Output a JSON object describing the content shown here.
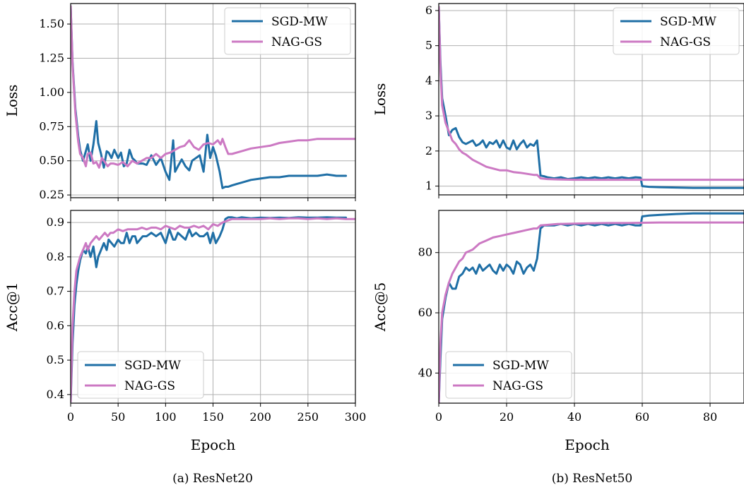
{
  "colors": {
    "sgd": "#1f6fa6",
    "nag": "#cc79c3",
    "grid": "#b0b0b0"
  },
  "panels": [
    {
      "id": "a-loss",
      "ylabel": "Loss",
      "xlim": [
        0,
        300
      ],
      "ylim": [
        0.23,
        1.65
      ],
      "yticks": [
        "0.25",
        "0.50",
        "0.75",
        "1.00",
        "1.25",
        "1.50"
      ],
      "xticks": [],
      "xlabel": "",
      "legend": {
        "position": "top-right",
        "entries": [
          "SGD-MW",
          "NAG-GS"
        ]
      }
    },
    {
      "id": "a-acc",
      "ylabel": "Acc@1",
      "xlim": [
        0,
        300
      ],
      "ylim": [
        0.375,
        0.935
      ],
      "yticks": [
        "0.4",
        "0.5",
        "0.6",
        "0.7",
        "0.8",
        "0.9"
      ],
      "xticks": [
        "0",
        "50",
        "100",
        "150",
        "200",
        "250",
        "300"
      ],
      "xlabel": "Epoch",
      "legend": {
        "position": "bottom-left",
        "entries": [
          "SGD-MW",
          "NAG-GS"
        ]
      }
    },
    {
      "id": "b-loss",
      "ylabel": "Loss",
      "xlim": [
        0,
        90
      ],
      "ylim": [
        0.75,
        6.2
      ],
      "yticks": [
        "1",
        "2",
        "3",
        "4",
        "5",
        "6"
      ],
      "xticks": [],
      "xlabel": "",
      "legend": {
        "position": "top-right",
        "entries": [
          "SGD-MW",
          "NAG-GS"
        ]
      }
    },
    {
      "id": "b-acc",
      "ylabel": "Acc@5",
      "xlim": [
        0,
        90
      ],
      "ylim": [
        30,
        94
      ],
      "yticks": [
        "40",
        "60",
        "80"
      ],
      "xticks": [
        "0",
        "20",
        "40",
        "60",
        "80"
      ],
      "xlabel": "Epoch",
      "legend": {
        "position": "bottom-left",
        "entries": [
          "SGD-MW",
          "NAG-GS"
        ]
      }
    }
  ],
  "captions": [
    "(a) ResNet20",
    "(b) ResNet50"
  ],
  "chart_data": [
    {
      "type": "line",
      "title": "",
      "xlabel": "",
      "ylabel": "Loss",
      "xlim": [
        0,
        300
      ],
      "ylim": [
        0.23,
        1.65
      ],
      "grid": true,
      "legend": "top-right",
      "series": [
        {
          "name": "SGD-MW",
          "x": [
            0,
            2,
            5,
            8,
            10,
            13,
            16,
            18,
            21,
            24,
            27,
            29,
            32,
            35,
            38,
            40,
            43,
            46,
            50,
            53,
            56,
            59,
            62,
            65,
            68,
            70,
            73,
            76,
            80,
            85,
            90,
            95,
            100,
            104,
            108,
            110,
            113,
            117,
            121,
            125,
            128,
            132,
            136,
            140,
            144,
            147,
            150,
            153,
            157,
            160,
            163,
            166,
            170,
            175,
            180,
            190,
            200,
            210,
            220,
            230,
            240,
            250,
            260,
            270,
            280,
            290
          ],
          "values": [
            1.63,
            1.22,
            0.88,
            0.68,
            0.58,
            0.5,
            0.57,
            0.62,
            0.5,
            0.62,
            0.79,
            0.63,
            0.55,
            0.45,
            0.57,
            0.56,
            0.52,
            0.58,
            0.52,
            0.56,
            0.46,
            0.48,
            0.58,
            0.52,
            0.5,
            0.48,
            0.48,
            0.48,
            0.47,
            0.54,
            0.47,
            0.52,
            0.42,
            0.36,
            0.65,
            0.42,
            0.46,
            0.51,
            0.46,
            0.43,
            0.5,
            0.52,
            0.54,
            0.42,
            0.69,
            0.52,
            0.6,
            0.54,
            0.42,
            0.3,
            0.31,
            0.31,
            0.32,
            0.33,
            0.34,
            0.36,
            0.37,
            0.38,
            0.38,
            0.39,
            0.39,
            0.39,
            0.39,
            0.4,
            0.39,
            0.39
          ]
        },
        {
          "name": "NAG-GS",
          "x": [
            0,
            2,
            5,
            8,
            10,
            13,
            16,
            18,
            21,
            24,
            27,
            30,
            33,
            36,
            39,
            42,
            45,
            50,
            55,
            60,
            65,
            70,
            75,
            80,
            85,
            90,
            95,
            100,
            105,
            110,
            115,
            120,
            125,
            130,
            135,
            140,
            145,
            150,
            155,
            158,
            160,
            163,
            166,
            170,
            180,
            190,
            200,
            210,
            220,
            230,
            240,
            250,
            260,
            270,
            280,
            290,
            300
          ],
          "values": [
            1.63,
            1.2,
            0.85,
            0.64,
            0.55,
            0.52,
            0.46,
            0.55,
            0.56,
            0.48,
            0.49,
            0.45,
            0.52,
            0.49,
            0.46,
            0.48,
            0.48,
            0.47,
            0.49,
            0.46,
            0.5,
            0.48,
            0.5,
            0.52,
            0.52,
            0.55,
            0.52,
            0.55,
            0.56,
            0.58,
            0.6,
            0.61,
            0.65,
            0.6,
            0.58,
            0.62,
            0.63,
            0.62,
            0.65,
            0.62,
            0.66,
            0.6,
            0.55,
            0.55,
            0.57,
            0.59,
            0.6,
            0.61,
            0.63,
            0.64,
            0.65,
            0.65,
            0.66,
            0.66,
            0.66,
            0.66,
            0.66
          ]
        }
      ]
    },
    {
      "type": "line",
      "title": "",
      "xlabel": "Epoch",
      "ylabel": "Acc@1",
      "xlim": [
        0,
        300
      ],
      "ylim": [
        0.375,
        0.935
      ],
      "grid": true,
      "legend": "bottom-left",
      "series": [
        {
          "name": "SGD-MW",
          "x": [
            0,
            2,
            4,
            6,
            8,
            10,
            13,
            16,
            18,
            21,
            24,
            27,
            29,
            32,
            35,
            38,
            40,
            43,
            46,
            50,
            53,
            56,
            59,
            62,
            65,
            68,
            70,
            73,
            76,
            80,
            85,
            90,
            95,
            100,
            104,
            108,
            110,
            113,
            117,
            121,
            125,
            128,
            132,
            136,
            140,
            144,
            147,
            150,
            153,
            157,
            160,
            163,
            166,
            170,
            175,
            180,
            190,
            200,
            210,
            220,
            230,
            240,
            250,
            260,
            270,
            280,
            290
          ],
          "values": [
            0.38,
            0.55,
            0.66,
            0.72,
            0.76,
            0.79,
            0.82,
            0.81,
            0.83,
            0.8,
            0.83,
            0.77,
            0.8,
            0.82,
            0.84,
            0.82,
            0.85,
            0.84,
            0.83,
            0.85,
            0.84,
            0.84,
            0.87,
            0.84,
            0.86,
            0.86,
            0.84,
            0.85,
            0.86,
            0.86,
            0.87,
            0.86,
            0.87,
            0.84,
            0.88,
            0.85,
            0.85,
            0.87,
            0.86,
            0.85,
            0.88,
            0.86,
            0.87,
            0.86,
            0.86,
            0.87,
            0.84,
            0.87,
            0.84,
            0.86,
            0.88,
            0.91,
            0.915,
            0.915,
            0.912,
            0.915,
            0.912,
            0.914,
            0.913,
            0.914,
            0.913,
            0.915,
            0.914,
            0.914,
            0.915,
            0.914,
            0.914
          ]
        },
        {
          "name": "NAG-GS",
          "x": [
            0,
            2,
            4,
            6,
            8,
            10,
            13,
            16,
            18,
            21,
            24,
            27,
            30,
            33,
            36,
            39,
            42,
            45,
            50,
            55,
            60,
            65,
            70,
            75,
            80,
            85,
            90,
            95,
            100,
            105,
            110,
            115,
            120,
            125,
            130,
            135,
            140,
            145,
            150,
            155,
            160,
            165,
            170,
            180,
            190,
            200,
            210,
            220,
            230,
            240,
            250,
            260,
            270,
            280,
            290,
            300
          ],
          "values": [
            0.38,
            0.6,
            0.7,
            0.76,
            0.78,
            0.8,
            0.82,
            0.84,
            0.82,
            0.84,
            0.85,
            0.86,
            0.85,
            0.86,
            0.87,
            0.86,
            0.87,
            0.87,
            0.88,
            0.875,
            0.88,
            0.88,
            0.88,
            0.885,
            0.88,
            0.885,
            0.885,
            0.88,
            0.89,
            0.885,
            0.88,
            0.89,
            0.885,
            0.885,
            0.89,
            0.885,
            0.89,
            0.88,
            0.895,
            0.89,
            0.9,
            0.905,
            0.91,
            0.91,
            0.91,
            0.91,
            0.912,
            0.91,
            0.912,
            0.912,
            0.91,
            0.912,
            0.91,
            0.912,
            0.91,
            0.91
          ]
        }
      ]
    },
    {
      "type": "line",
      "title": "",
      "xlabel": "",
      "ylabel": "Loss",
      "xlim": [
        0,
        90
      ],
      "ylim": [
        0.75,
        6.2
      ],
      "grid": true,
      "legend": "top-right",
      "series": [
        {
          "name": "SGD-MW",
          "x": [
            0,
            0.5,
            1,
            2,
            3,
            4,
            5,
            6,
            7,
            8,
            9,
            10,
            11,
            12,
            13,
            14,
            15,
            16,
            17,
            18,
            19,
            20,
            21,
            22,
            23,
            24,
            25,
            26,
            27,
            28,
            29,
            30,
            31,
            32,
            34,
            36,
            38,
            40,
            42,
            44,
            46,
            48,
            50,
            52,
            54,
            56,
            58,
            59.5,
            60,
            62,
            65,
            70,
            75,
            80,
            85,
            90
          ],
          "values": [
            6.1,
            4.5,
            3.5,
            3.0,
            2.45,
            2.6,
            2.65,
            2.4,
            2.25,
            2.2,
            2.25,
            2.3,
            2.15,
            2.2,
            2.3,
            2.1,
            2.25,
            2.2,
            2.3,
            2.1,
            2.3,
            2.1,
            2.05,
            2.3,
            2.05,
            2.2,
            2.3,
            2.1,
            2.2,
            2.15,
            2.3,
            1.3,
            1.28,
            1.25,
            1.22,
            1.25,
            1.2,
            1.22,
            1.25,
            1.22,
            1.25,
            1.22,
            1.25,
            1.22,
            1.25,
            1.22,
            1.25,
            1.24,
            1.0,
            0.98,
            0.97,
            0.96,
            0.95,
            0.95,
            0.95,
            0.95
          ]
        },
        {
          "name": "NAG-GS",
          "x": [
            0,
            0.5,
            1,
            2,
            3,
            4,
            5,
            6,
            7,
            8,
            10,
            12,
            14,
            16,
            18,
            20,
            22,
            24,
            26,
            28,
            29,
            30,
            32,
            35,
            40,
            45,
            50,
            55,
            60,
            65,
            70,
            80,
            90
          ],
          "values": [
            6.1,
            4.3,
            3.3,
            2.8,
            2.55,
            2.3,
            2.2,
            2.05,
            1.95,
            1.9,
            1.75,
            1.65,
            1.55,
            1.5,
            1.45,
            1.45,
            1.4,
            1.38,
            1.35,
            1.32,
            1.32,
            1.22,
            1.2,
            1.19,
            1.18,
            1.18,
            1.18,
            1.18,
            1.18,
            1.18,
            1.18,
            1.18,
            1.18
          ]
        }
      ]
    },
    {
      "type": "line",
      "title": "",
      "xlabel": "Epoch",
      "ylabel": "Acc@5",
      "xlim": [
        0,
        90
      ],
      "ylim": [
        30,
        94
      ],
      "grid": true,
      "legend": "bottom-left",
      "series": [
        {
          "name": "SGD-MW",
          "x": [
            0,
            0.5,
            1,
            2,
            3,
            4,
            5,
            6,
            7,
            8,
            9,
            10,
            11,
            12,
            13,
            14,
            15,
            16,
            17,
            18,
            19,
            20,
            21,
            22,
            23,
            24,
            25,
            26,
            27,
            28,
            29,
            30,
            31,
            32,
            34,
            36,
            38,
            40,
            42,
            44,
            46,
            48,
            50,
            52,
            54,
            56,
            58,
            59.5,
            60,
            62,
            65,
            70,
            75,
            80,
            85,
            90
          ],
          "values": [
            30,
            45,
            58,
            65,
            70,
            68,
            68,
            72,
            73,
            75,
            74,
            75,
            73,
            76,
            74,
            75,
            76,
            74,
            73,
            76,
            74,
            76,
            75,
            73,
            77,
            76,
            73,
            75,
            76,
            74,
            78,
            88,
            89,
            89,
            89,
            89.5,
            89,
            89.5,
            89,
            89.5,
            89,
            89.5,
            89,
            89.5,
            89,
            89.5,
            89,
            89,
            92,
            92.3,
            92.5,
            92.8,
            93,
            93,
            93,
            93
          ]
        },
        {
          "name": "NAG-GS",
          "x": [
            0,
            0.5,
            1,
            2,
            3,
            4,
            5,
            6,
            7,
            8,
            10,
            12,
            14,
            16,
            18,
            20,
            22,
            24,
            26,
            28,
            29,
            30,
            32,
            35,
            40,
            45,
            50,
            55,
            60,
            65,
            70,
            80,
            90
          ],
          "values": [
            30,
            50,
            60,
            66,
            70,
            73,
            75,
            77,
            78,
            80,
            81,
            83,
            84,
            85,
            85.5,
            86,
            86.5,
            87,
            87.5,
            88,
            88,
            89,
            89.2,
            89.5,
            89.6,
            89.7,
            89.8,
            89.8,
            89.9,
            90,
            90,
            90,
            90
          ]
        }
      ]
    }
  ]
}
